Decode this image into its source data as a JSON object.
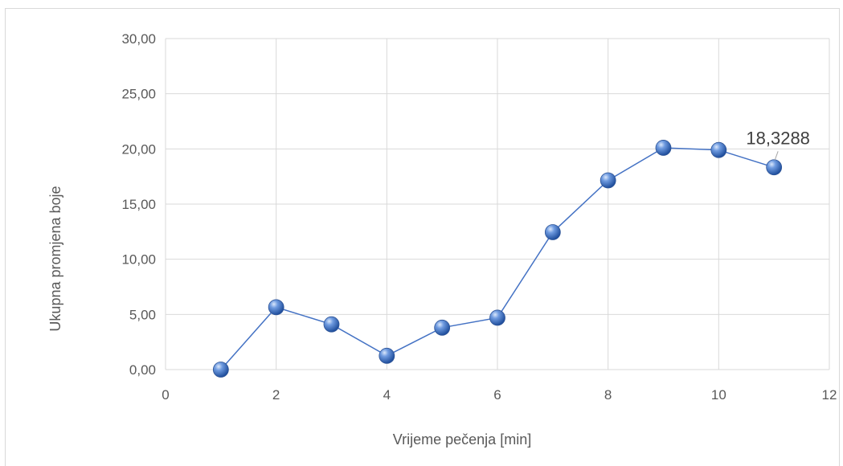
{
  "chart_data": {
    "type": "scatter",
    "title": "",
    "xlabel": "Vrijeme pečenja [min]",
    "ylabel": "Ukupna promjena boje",
    "xlim": [
      0,
      12
    ],
    "ylim": [
      0,
      30
    ],
    "x_ticks": [
      0,
      2,
      4,
      6,
      8,
      10,
      12
    ],
    "y_ticks": [
      "0,00",
      "5,00",
      "10,00",
      "15,00",
      "20,00",
      "25,00",
      "30,00"
    ],
    "y_tick_values": [
      0,
      5,
      10,
      15,
      20,
      25,
      30
    ],
    "grid": true,
    "legend": "none",
    "series": [
      {
        "x": [
          1,
          2,
          3,
          4,
          5,
          6,
          7,
          8,
          9,
          10,
          11
        ],
        "y": [
          0.0,
          5.65,
          4.1,
          1.25,
          3.8,
          4.7,
          12.45,
          17.15,
          20.1,
          19.9,
          18.3288
        ],
        "color": "#4472c4"
      }
    ],
    "annotations": [
      {
        "x": 11,
        "y": 18.3288,
        "text": "18,3288"
      }
    ]
  }
}
